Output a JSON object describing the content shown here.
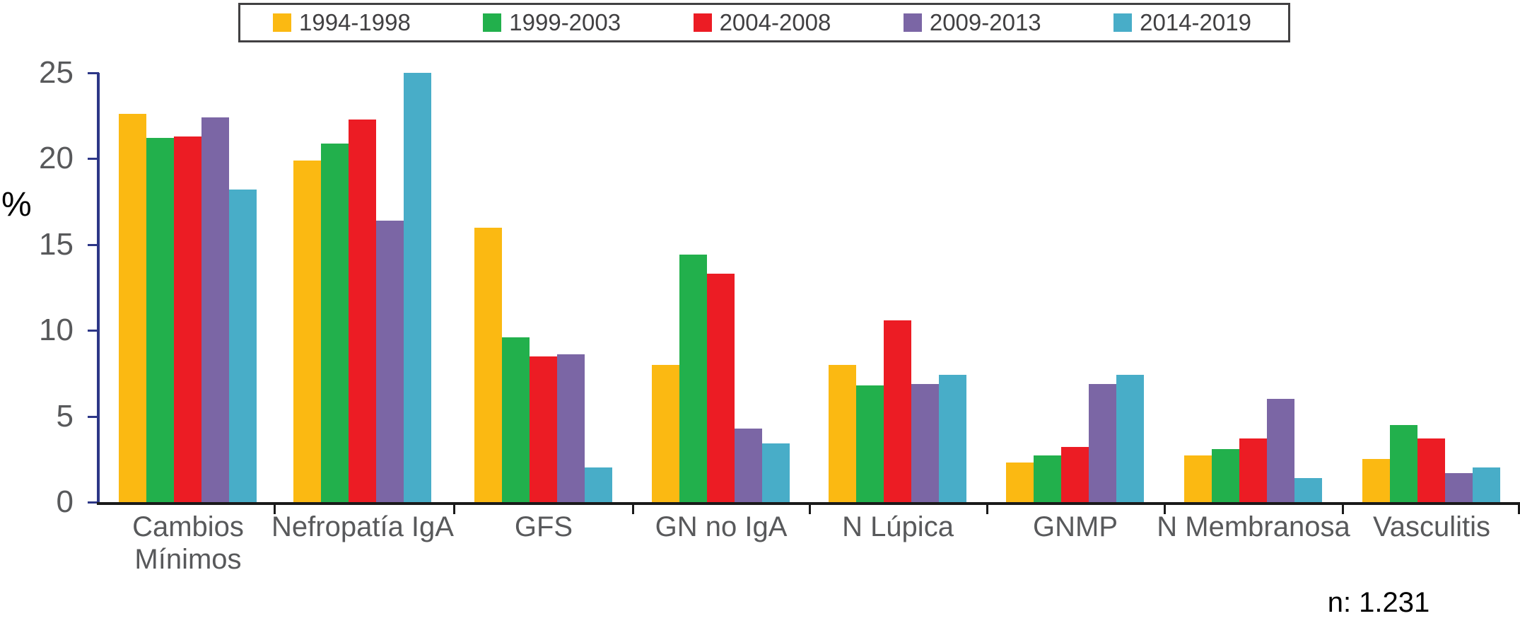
{
  "chart_data": {
    "type": "bar",
    "title": "",
    "ylabel": "%",
    "ylim": [
      0,
      25
    ],
    "yticks": [
      0,
      5,
      10,
      15,
      20,
      25
    ],
    "grid": false,
    "legend_position": "top",
    "categories": [
      "Cambios\nMínimos",
      "Nefropatía IgA",
      "GFS",
      "GN no IgA",
      "N Lúpica",
      "GNMP",
      "N Membranosa",
      "Vasculitis"
    ],
    "series": [
      {
        "name": "1994-1998",
        "color": "#FBB912",
        "values": [
          22.6,
          19.9,
          16.0,
          8.0,
          8.0,
          2.3,
          2.7,
          2.5
        ]
      },
      {
        "name": "1999-2003",
        "color": "#22B04C",
        "values": [
          21.2,
          20.9,
          9.6,
          14.4,
          6.8,
          2.7,
          3.1,
          4.5
        ]
      },
      {
        "name": "2004-2008",
        "color": "#EC1C24",
        "values": [
          21.3,
          22.3,
          8.5,
          13.3,
          10.6,
          3.2,
          3.7,
          3.7
        ]
      },
      {
        "name": "2009-2013",
        "color": "#7B66A5",
        "values": [
          22.4,
          16.4,
          8.6,
          4.3,
          6.9,
          6.9,
          6.0,
          1.7
        ]
      },
      {
        "name": "2014-2019",
        "color": "#48ADC8",
        "values": [
          18.2,
          25.0,
          2.0,
          3.4,
          7.4,
          7.4,
          1.4,
          2.0
        ]
      }
    ],
    "annotations": [
      "n: 1.231"
    ]
  },
  "annotation": {
    "sample_size": "n: 1.231"
  },
  "colors": {
    "y_axis": "#2D3787",
    "x_axis": "#1A1A1A",
    "tick_label": "#58595B",
    "legend_text": "#414042",
    "background": "#FFFFFF"
  }
}
